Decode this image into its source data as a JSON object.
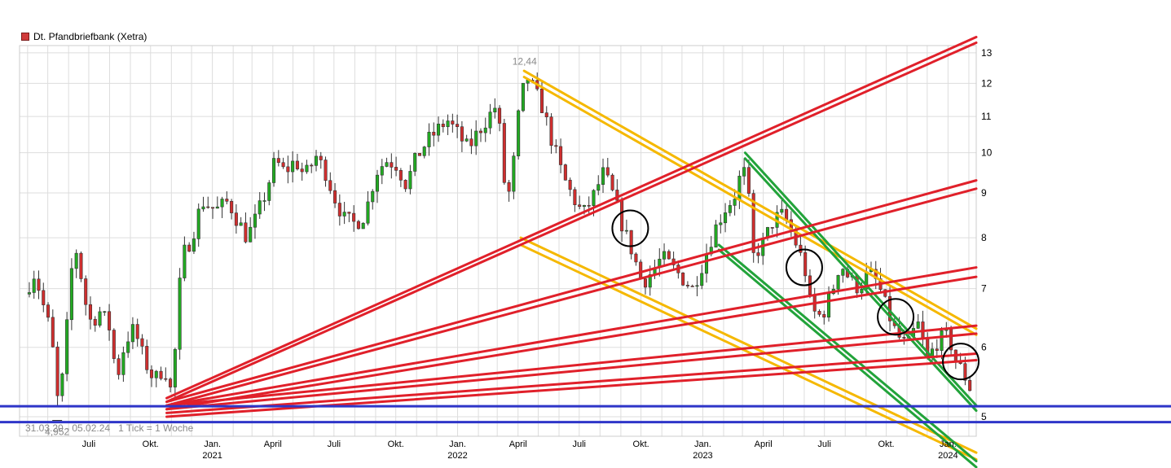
{
  "chart_data": {
    "type": "candlestick",
    "title": "Dt. Pfandbriefbank (Xetra)",
    "series_name": "Dt. Pfandbriefbank (Xetra)",
    "period_text": "31.03.20 - 05.02.24",
    "tick_text": "1 Tick = 1 Woche",
    "y_scale": "log",
    "ylim": [
      4.75,
      13.25
    ],
    "yticks": [
      5,
      6,
      7,
      8,
      9,
      10,
      11,
      12,
      13
    ],
    "x_start": "2020-03-31",
    "x_end": "2024-02-05",
    "x_domain": [
      "2020-03-20",
      "2024-02-12"
    ],
    "xticks": [
      {
        "date": "2020-07-01",
        "label": "Juli",
        "year": ""
      },
      {
        "date": "2020-10-01",
        "label": "Okt.",
        "year": ""
      },
      {
        "date": "2021-01-01",
        "label": "Jan.",
        "year": "2021"
      },
      {
        "date": "2021-04-01",
        "label": "April",
        "year": ""
      },
      {
        "date": "2021-07-01",
        "label": "Juli",
        "year": ""
      },
      {
        "date": "2021-10-01",
        "label": "Okt.",
        "year": ""
      },
      {
        "date": "2022-01-01",
        "label": "Jan.",
        "year": "2022"
      },
      {
        "date": "2022-04-01",
        "label": "April",
        "year": ""
      },
      {
        "date": "2022-07-01",
        "label": "Juli",
        "year": ""
      },
      {
        "date": "2022-10-01",
        "label": "Okt.",
        "year": ""
      },
      {
        "date": "2023-01-01",
        "label": "Jan.",
        "year": "2023"
      },
      {
        "date": "2023-04-01",
        "label": "April",
        "year": ""
      },
      {
        "date": "2023-07-01",
        "label": "Juli",
        "year": ""
      },
      {
        "date": "2023-10-01",
        "label": "Okt.",
        "year": ""
      },
      {
        "date": "2024-01-01",
        "label": "Jan.",
        "year": "2024"
      }
    ],
    "annotations": {
      "max_label": "12,44",
      "max_value": 12.44,
      "max_date": "2022-04-18",
      "min_label": "4,952",
      "min_value": 4.952,
      "min_date": "2020-05-15"
    },
    "grid": true,
    "legend_position": "top-left",
    "colors": {
      "up": "#22aa22",
      "down": "#d02e2e",
      "red_lines": "#e0202a",
      "yellow_lines": "#f5b800",
      "green_lines": "#22a33a",
      "blue_lines": "#2e35c8",
      "circles": "#000000",
      "grid": "#dddddd"
    },
    "price_path": [
      [
        "2020-03-31",
        6.9
      ],
      [
        "2020-04-15",
        7.3
      ],
      [
        "2020-04-30",
        6.6
      ],
      [
        "2020-05-10",
        6.2
      ],
      [
        "2020-05-18",
        5.2
      ],
      [
        "2020-05-28",
        5.6
      ],
      [
        "2020-06-10",
        7.5
      ],
      [
        "2020-06-18",
        7.8
      ],
      [
        "2020-06-26",
        6.9
      ],
      [
        "2020-07-08",
        6.4
      ],
      [
        "2020-07-22",
        6.6
      ],
      [
        "2020-08-05",
        6.3
      ],
      [
        "2020-08-15",
        5.5
      ],
      [
        "2020-08-28",
        6.1
      ],
      [
        "2020-09-10",
        6.3
      ],
      [
        "2020-09-25",
        5.8
      ],
      [
        "2020-10-10",
        5.5
      ],
      [
        "2020-10-25",
        5.7
      ],
      [
        "2020-11-05",
        5.3
      ],
      [
        "2020-11-12",
        6.2
      ],
      [
        "2020-11-20",
        7.6
      ],
      [
        "2020-12-05",
        8.0
      ],
      [
        "2020-12-20",
        8.8
      ],
      [
        "2021-01-10",
        8.6
      ],
      [
        "2021-01-28",
        8.8
      ],
      [
        "2021-02-10",
        8.4
      ],
      [
        "2021-02-25",
        8.0
      ],
      [
        "2021-03-10",
        8.4
      ],
      [
        "2021-03-25",
        9.0
      ],
      [
        "2021-04-08",
        9.8
      ],
      [
        "2021-04-22",
        9.5
      ],
      [
        "2021-05-08",
        9.8
      ],
      [
        "2021-05-22",
        9.4
      ],
      [
        "2021-06-08",
        9.9
      ],
      [
        "2021-06-22",
        9.5
      ],
      [
        "2021-07-05",
        8.9
      ],
      [
        "2021-07-20",
        8.4
      ],
      [
        "2021-08-05",
        8.3
      ],
      [
        "2021-08-20",
        8.5
      ],
      [
        "2021-09-05",
        9.5
      ],
      [
        "2021-09-20",
        9.8
      ],
      [
        "2021-10-05",
        9.7
      ],
      [
        "2021-10-20",
        9.2
      ],
      [
        "2021-11-05",
        9.9
      ],
      [
        "2021-11-20",
        10.3
      ],
      [
        "2021-12-05",
        10.6
      ],
      [
        "2021-12-20",
        10.9
      ],
      [
        "2022-01-05",
        10.5
      ],
      [
        "2022-01-20",
        10.1
      ],
      [
        "2022-02-05",
        10.6
      ],
      [
        "2022-02-20",
        11.0
      ],
      [
        "2022-03-02",
        11.3
      ],
      [
        "2022-03-10",
        10.4
      ],
      [
        "2022-03-18",
        8.6
      ],
      [
        "2022-03-28",
        9.6
      ],
      [
        "2022-04-08",
        11.5
      ],
      [
        "2022-04-18",
        12.2
      ],
      [
        "2022-04-28",
        11.8
      ],
      [
        "2022-05-10",
        11.3
      ],
      [
        "2022-05-25",
        10.3
      ],
      [
        "2022-06-10",
        9.4
      ],
      [
        "2022-06-25",
        8.9
      ],
      [
        "2022-07-10",
        8.5
      ],
      [
        "2022-07-25",
        8.9
      ],
      [
        "2022-08-10",
        9.5
      ],
      [
        "2022-08-25",
        8.9
      ],
      [
        "2022-09-08",
        8.2
      ],
      [
        "2022-09-22",
        7.7
      ],
      [
        "2022-10-06",
        7.1
      ],
      [
        "2022-10-20",
        7.3
      ],
      [
        "2022-11-05",
        7.6
      ],
      [
        "2022-11-20",
        7.4
      ],
      [
        "2022-12-05",
        7.2
      ],
      [
        "2022-12-20",
        7.0
      ],
      [
        "2023-01-05",
        7.5
      ],
      [
        "2023-01-20",
        8.1
      ],
      [
        "2023-02-05",
        8.6
      ],
      [
        "2023-02-20",
        8.9
      ],
      [
        "2023-03-05",
        9.6
      ],
      [
        "2023-03-12",
        9.2
      ],
      [
        "2023-03-20",
        7.6
      ],
      [
        "2023-04-05",
        7.9
      ],
      [
        "2023-04-20",
        8.4
      ],
      [
        "2023-05-05",
        8.5
      ],
      [
        "2023-05-20",
        8.0
      ],
      [
        "2023-06-05",
        7.4
      ],
      [
        "2023-06-15",
        6.6
      ],
      [
        "2023-06-30",
        6.5
      ],
      [
        "2023-07-15",
        6.9
      ],
      [
        "2023-07-28",
        7.5
      ],
      [
        "2023-08-10",
        7.2
      ],
      [
        "2023-08-25",
        7.0
      ],
      [
        "2023-09-08",
        7.3
      ],
      [
        "2023-09-22",
        7.1
      ],
      [
        "2023-10-06",
        6.6
      ],
      [
        "2023-10-20",
        6.2
      ],
      [
        "2023-11-05",
        6.0
      ],
      [
        "2023-11-20",
        6.4
      ],
      [
        "2023-12-05",
        5.8
      ],
      [
        "2023-12-20",
        6.1
      ],
      [
        "2024-01-05",
        6.2
      ],
      [
        "2024-01-15",
        5.8
      ],
      [
        "2024-01-28",
        5.6
      ],
      [
        "2024-02-05",
        5.4
      ]
    ],
    "lines": {
      "red": [
        [
          [
            "2020-10-25",
            5.25
          ],
          [
            "2024-02-12",
            13.55
          ]
        ],
        [
          [
            "2020-10-25",
            5.2
          ],
          [
            "2024-02-12",
            13.35
          ]
        ],
        [
          [
            "2020-10-25",
            5.2
          ],
          [
            "2024-02-12",
            9.3
          ]
        ],
        [
          [
            "2020-10-25",
            5.15
          ],
          [
            "2024-02-12",
            9.1
          ]
        ],
        [
          [
            "2020-10-25",
            5.15
          ],
          [
            "2024-02-12",
            7.4
          ]
        ],
        [
          [
            "2020-10-25",
            5.1
          ],
          [
            "2024-02-12",
            7.22
          ]
        ],
        [
          [
            "2020-10-25",
            5.15
          ],
          [
            "2024-02-12",
            6.35
          ]
        ],
        [
          [
            "2020-10-25",
            5.1
          ],
          [
            "2024-02-12",
            6.22
          ]
        ],
        [
          [
            "2020-10-25",
            5.05
          ],
          [
            "2024-02-12",
            5.9
          ]
        ],
        [
          [
            "2020-10-25",
            5.0
          ],
          [
            "2024-02-12",
            5.8
          ]
        ]
      ],
      "yellow": [
        [
          [
            "2022-04-10",
            12.4
          ],
          [
            "2024-02-12",
            6.3
          ]
        ],
        [
          [
            "2022-04-10",
            12.2
          ],
          [
            "2024-02-12",
            6.2
          ]
        ],
        [
          [
            "2022-04-05",
            8.0
          ],
          [
            "2024-02-12",
            4.55
          ]
        ],
        [
          [
            "2022-04-05",
            7.85
          ],
          [
            "2024-02-12",
            4.47
          ]
        ]
      ],
      "green": [
        [
          [
            "2023-03-05",
            10.0
          ],
          [
            "2024-02-12",
            5.15
          ]
        ],
        [
          [
            "2023-03-05",
            9.85
          ],
          [
            "2024-02-12",
            5.08
          ]
        ],
        [
          [
            "2023-01-25",
            7.85
          ],
          [
            "2024-02-12",
            4.45
          ]
        ],
        [
          [
            "2023-01-25",
            7.75
          ],
          [
            "2024-02-12",
            4.38
          ]
        ]
      ],
      "blue": [
        5.14,
        4.93
      ]
    },
    "circles": [
      [
        "2022-09-15",
        8.2
      ],
      [
        "2023-06-01",
        7.4
      ],
      [
        "2023-10-15",
        6.5
      ],
      [
        "2024-01-20",
        5.78
      ]
    ]
  }
}
